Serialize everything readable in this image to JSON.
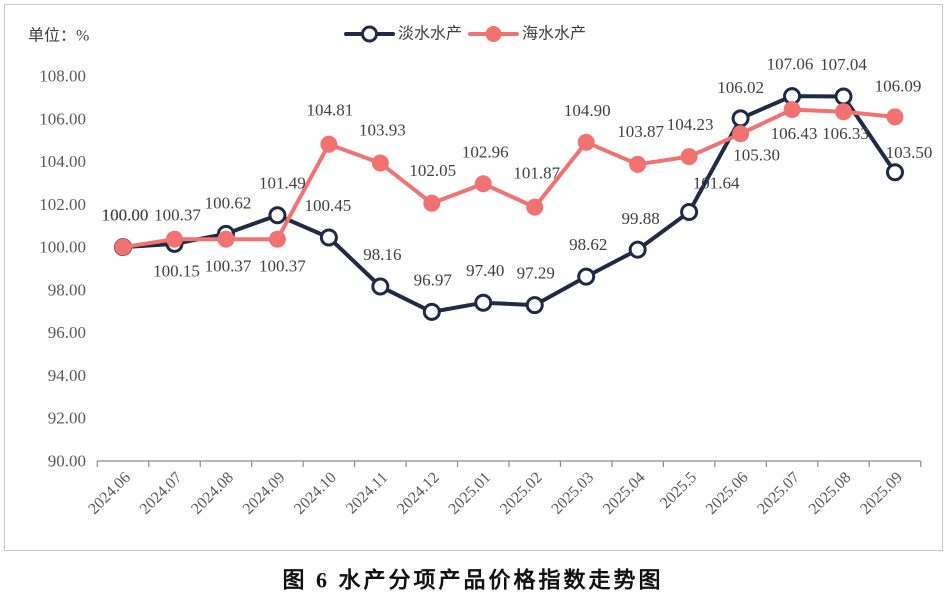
{
  "chart_data": {
    "type": "line",
    "title": "图 6 水产分项产品价格指数走势图",
    "ylabel": "单位：%",
    "xlabel": "",
    "categories": [
      "2024.06",
      "2024.07",
      "2024.08",
      "2024.09",
      "2024.10",
      "2024.11",
      "2024.12",
      "2025.01",
      "2025.02",
      "2025.03",
      "2025.04",
      "2025.5",
      "2025.06",
      "2025.07",
      "2025.08",
      "2025.09"
    ],
    "ylim": [
      90,
      108
    ],
    "y_ticks": [
      "90.00",
      "92.00",
      "94.00",
      "96.00",
      "98.00",
      "100.00",
      "102.00",
      "104.00",
      "106.00",
      "108.00"
    ],
    "grid": false,
    "legend_position": "top-center",
    "series": [
      {
        "name": "淡水水产",
        "color": "#1f2a44",
        "marker": "hollow-circle",
        "values": [
          100.0,
          100.15,
          100.62,
          101.49,
          100.45,
          98.16,
          96.97,
          97.4,
          97.29,
          98.62,
          99.88,
          101.64,
          106.02,
          107.06,
          107.04,
          103.5
        ],
        "data_labels": [
          "100.00",
          "100.15",
          "100.62",
          "101.49",
          "100.45",
          "98.16",
          "96.97",
          "97.40",
          "97.29",
          "98.62",
          "99.88",
          "101.64",
          "106.02",
          "107.06",
          "107.04",
          "103.50"
        ]
      },
      {
        "name": "海水水产",
        "color": "#f27272",
        "marker": "filled-circle",
        "values": [
          100.0,
          100.37,
          100.37,
          100.37,
          104.81,
          103.93,
          102.05,
          102.96,
          101.87,
          104.9,
          103.87,
          104.23,
          105.3,
          106.43,
          106.33,
          106.09
        ],
        "data_labels": [
          "100.00",
          "100.37",
          "100.37",
          "100.37",
          "104.81",
          "103.93",
          "102.05",
          "102.96",
          "101.87",
          "104.90",
          "103.87",
          "104.23",
          "105.30",
          "106.43",
          "106.33",
          "106.09"
        ]
      }
    ]
  }
}
